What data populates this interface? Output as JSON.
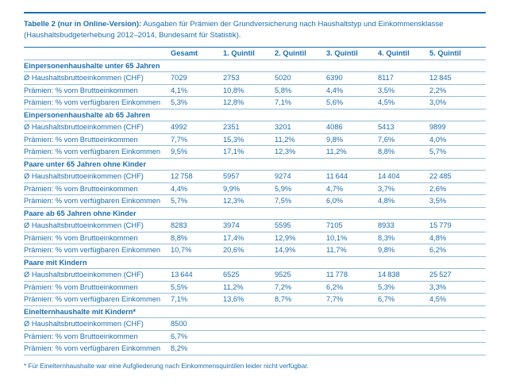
{
  "colors": {
    "accent": "#1d6fae",
    "row_line": "#92bedb"
  },
  "caption": {
    "bold": "Tabelle 2 (nur in Online-Version):",
    "rest": " Ausgaben für Prämien der Grundversicherung nach Haushaltstyp und Einkommensklasse (Haushaltsbudgeterhebung 2012–2014, Bundesamt für Statistik)."
  },
  "table": {
    "columns": [
      "Gesamt",
      "1. Quintil",
      "2. Quintil",
      "3. Quintil",
      "4. Quintil",
      "5. Quintil"
    ],
    "sections": [
      {
        "header": "Einpersonenhaushalte unter 65 Jahren",
        "rows": [
          {
            "label": "Ø Haushaltsbruttoeinkommen (CHF)",
            "values": [
              "7029",
              "2753",
              "5020",
              "6390",
              "8117",
              "12 845"
            ]
          },
          {
            "label": "Prämien: % vom Bruttoeinkommen",
            "values": [
              "4,1%",
              "10,8%",
              "5,8%",
              "4,4%",
              "3,5%",
              "2,2%"
            ]
          },
          {
            "label": "Prämien: % vom verfügbaren Einkommen",
            "values": [
              "5,3%",
              "12,8%",
              "7,1%",
              "5,6%",
              "4,5%",
              "3,0%"
            ]
          }
        ]
      },
      {
        "header": "Einpersonenhaushalte ab 65 Jahren",
        "rows": [
          {
            "label": "Ø Haushaltsbruttoeinkommen (CHF)",
            "values": [
              "4992",
              "2351",
              "3201",
              "4086",
              "5413",
              "9899"
            ]
          },
          {
            "label": "Prämien: % vom Bruttoeinkommen",
            "values": [
              "7,7%",
              "15,3%",
              "11,2%",
              "9,8%",
              "7,6%",
              "4,0%"
            ]
          },
          {
            "label": "Prämien: % vom verfügbaren Einkommen",
            "values": [
              "9,5%",
              "17,1%",
              "12,3%",
              "11,2%",
              "8,8%",
              "5,7%"
            ]
          }
        ]
      },
      {
        "header": "Paare unter 65 Jahren ohne Kinder",
        "rows": [
          {
            "label": "Ø Haushaltsbruttoeinkommen (CHF)",
            "values": [
              "12 758",
              "5957",
              "9274",
              "11 644",
              "14 404",
              "22 485"
            ]
          },
          {
            "label": "Prämien: % vom Bruttoeinkommen",
            "values": [
              "4,4%",
              "9,9%",
              "5,9%",
              "4,7%",
              "3,7%",
              "2,6%"
            ]
          },
          {
            "label": "Prämien: % vom verfügbaren Einkommen",
            "values": [
              "5,7%",
              "12,3%",
              "7,5%",
              "6,0%",
              "4,8%",
              "3,5%"
            ]
          }
        ]
      },
      {
        "header": "Paare ab 65 Jahren ohne Kinder",
        "rows": [
          {
            "label": "Ø Haushaltsbruttoeinkommen (CHF)",
            "values": [
              "8283",
              "3974",
              "5595",
              "7105",
              "8933",
              "15 779"
            ]
          },
          {
            "label": "Prämien: % vom Bruttoeinkommen",
            "values": [
              "8,8%",
              "17,4%",
              "12,9%",
              "10,1%",
              "8,3%",
              "4,8%"
            ]
          },
          {
            "label": "Prämien: % vom verfügbaren Einkommen",
            "values": [
              "10,7%",
              "20,6%",
              "14,9%",
              "11,7%",
              "9,8%",
              "6,2%"
            ]
          }
        ]
      },
      {
        "header": "Paare mit Kindern",
        "rows": [
          {
            "label": "Ø Haushaltsbruttoeinkommen (CHF)",
            "values": [
              "13 644",
              "6525",
              "9525",
              "11 778",
              "14 838",
              "25 527"
            ]
          },
          {
            "label": "Prämien: % vom Bruttoeinkommen",
            "values": [
              "5,5%",
              "11,2%",
              "7,2%",
              "6,2%",
              "5,3%",
              "3,3%"
            ]
          },
          {
            "label": "Prämien: % vom verfügbaren Einkommen",
            "values": [
              "7,1%",
              "13,6%",
              "8,7%",
              "7,7%",
              "6,7%",
              "4,5%"
            ]
          }
        ]
      },
      {
        "header": "Einelternhaushalte mit Kindern*",
        "rows": [
          {
            "label": "Ø Haushaltsbruttoeinkommen (CHF)",
            "values": [
              "8500",
              "",
              "",
              "",
              "",
              ""
            ]
          },
          {
            "label": "Prämien: % vom Bruttoeinkommen",
            "values": [
              "6,7%",
              "",
              "",
              "",
              "",
              ""
            ]
          },
          {
            "label": "Prämien: % vom verfügbaren Einkommen",
            "values": [
              "8,2%",
              "",
              "",
              "",
              "",
              ""
            ]
          }
        ]
      }
    ]
  },
  "footnote": "* Für Einelternhaushalte war eine Aufgliederung nach Einkommensquintilen leider nicht verfügbar."
}
